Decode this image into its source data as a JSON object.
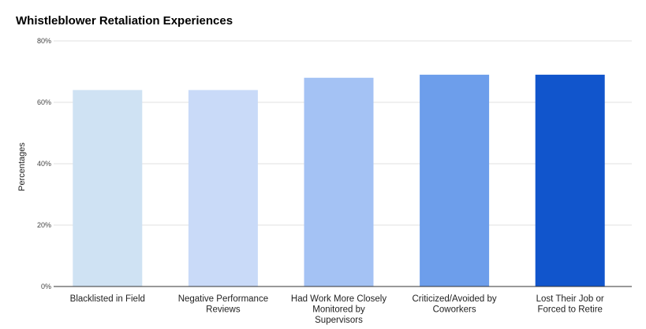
{
  "chart_data": {
    "type": "bar",
    "title": "Whistleblower Retaliation Experiences",
    "xlabel": "",
    "ylabel": "Percentages",
    "categories": [
      "Blacklisted in Field",
      "Negative Performance Reviews",
      "Had Work More Closely Monitored by Supervisors",
      "Criticized/Avoided by Coworkers",
      "Lost Their Job or Forced to Retire"
    ],
    "category_lines": [
      [
        "Blacklisted in Field"
      ],
      [
        "Negative Performance",
        "Reviews"
      ],
      [
        "Had Work More Closely",
        "Monitored by",
        "Supervisors"
      ],
      [
        "Criticized/Avoided by",
        "Coworkers"
      ],
      [
        "Lost Their Job or",
        "Forced to Retire"
      ]
    ],
    "values": [
      64,
      64,
      68,
      69,
      69
    ],
    "bar_colors": [
      "#cfe2f3",
      "#c9daf8",
      "#a4c2f4",
      "#6d9eeb",
      "#1155cc"
    ],
    "ylim": [
      0,
      80
    ],
    "yticks": [
      0,
      20,
      40,
      60,
      80
    ],
    "ytick_labels": [
      "0%",
      "20%",
      "40%",
      "60%",
      "80%"
    ],
    "grid": true,
    "legend": "none"
  }
}
